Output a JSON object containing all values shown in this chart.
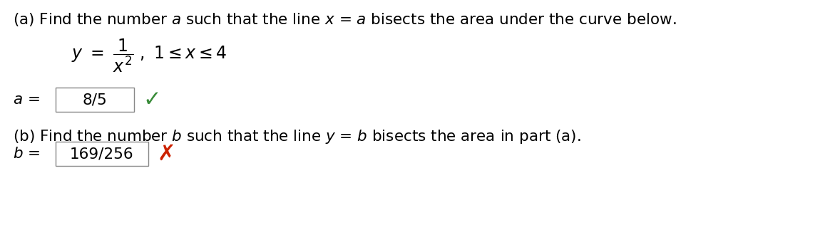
{
  "bg_color": "#ffffff",
  "a_value": "8/5",
  "b_value": "169/256",
  "checkmark_color": "#3a8c3a",
  "cross_color": "#cc2200",
  "box_facecolor": "#ffffff",
  "box_edgecolor": "#888888",
  "font_size_main": 15.5,
  "font_size_eq": 17
}
